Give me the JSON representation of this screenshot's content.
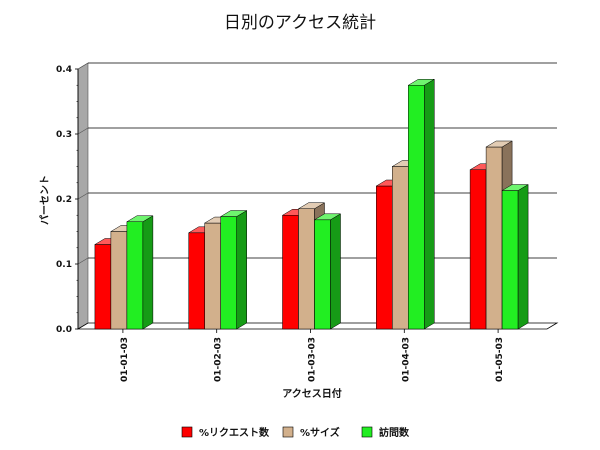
{
  "chart_data": {
    "type": "bar",
    "title": "日別のアクセス統計",
    "xlabel": "アクセス日付",
    "ylabel": "パーセント",
    "categories": [
      "01-01-03",
      "01-02-03",
      "01-03-03",
      "01-04-03",
      "01-05-03"
    ],
    "ylim": [
      0,
      0.4
    ],
    "yticks": [
      "0.0",
      "0.1",
      "0.2",
      "0.3",
      "0.4"
    ],
    "grid": true,
    "legend_position": "bottom",
    "series": [
      {
        "name": "%リクエスト数",
        "color": "#ff0000",
        "values": [
          0.13,
          0.148,
          0.175,
          0.22,
          0.245
        ]
      },
      {
        "name": "%サイズ",
        "color": "#d2b08c",
        "values": [
          0.15,
          0.163,
          0.185,
          0.25,
          0.28
        ]
      },
      {
        "name": "訪問数",
        "color": "#22ee22",
        "values": [
          0.165,
          0.173,
          0.168,
          0.375,
          0.213
        ]
      }
    ]
  }
}
